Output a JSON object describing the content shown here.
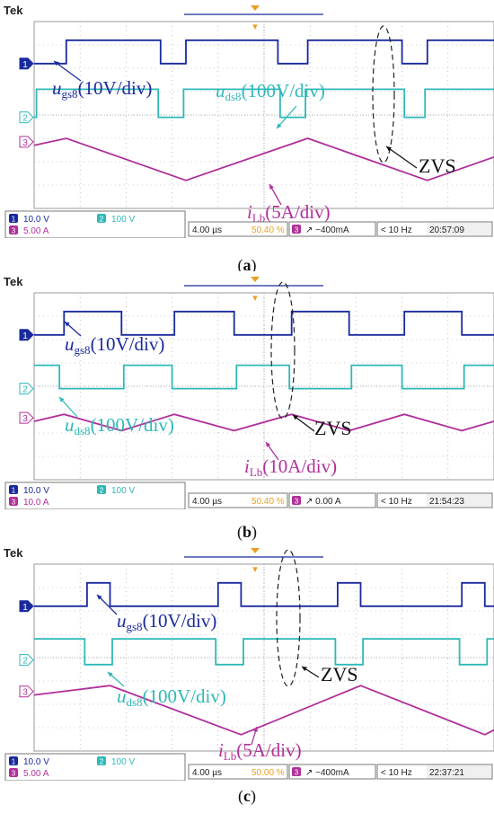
{
  "panels": [
    {
      "id": "a",
      "caption": "a",
      "tek": "Tek",
      "labels": {
        "ugs": "u",
        "ugs_sub": "gs8",
        "ugs_scale": "(10V/div)",
        "uds": "u",
        "uds_sub": "ds8",
        "uds_scale": "(100V/div)",
        "ilb": "i",
        "ilb_sub": "Lb",
        "ilb_scale": "(5A/div)",
        "zvs": "ZVS"
      },
      "status": {
        "ch1": "10.0 V",
        "ch2": "100 V",
        "ch3": "5.00 A",
        "timebase": "4.00 µs",
        "position": "50.40 %",
        "trig_ch": "3",
        "trig_level": "−400mA",
        "freq": "< 10 Hz",
        "clock": "20:57:09"
      },
      "channel_markers": [
        "1",
        "2",
        "3"
      ]
    },
    {
      "id": "b",
      "caption": "b",
      "tek": "Tek",
      "labels": {
        "ugs": "u",
        "ugs_sub": "gs8",
        "ugs_scale": "(10V/div)",
        "uds": "u",
        "uds_sub": "ds8",
        "uds_scale": "(100V/div)",
        "ilb": "i",
        "ilb_sub": "Lb",
        "ilb_scale": "(10A/div)",
        "zvs": "ZVS"
      },
      "status": {
        "ch1": "10.0 V",
        "ch2": "100 V",
        "ch3": "10.0 A",
        "timebase": "4.00 µs",
        "position": "50.40 %",
        "trig_ch": "3",
        "trig_level": "0.00 A",
        "freq": "< 10 Hz",
        "clock": "21:54:23"
      },
      "channel_markers": [
        "1",
        "2",
        "3"
      ]
    },
    {
      "id": "c",
      "caption": "c",
      "tek": "Tek",
      "labels": {
        "ugs": "u",
        "ugs_sub": "gs8",
        "ugs_scale": "(10V/div)",
        "uds": "u",
        "uds_sub": "ds8",
        "uds_scale": "(100V/div)",
        "ilb": "i",
        "ilb_sub": "Lb",
        "ilb_scale": "(5A/div)",
        "zvs": "ZVS"
      },
      "status": {
        "ch1": "10.0 V",
        "ch2": "100 V",
        "ch3": "5.00 A",
        "timebase": "4.00 µs",
        "position": "50.00 %",
        "trig_ch": "3",
        "trig_level": "−400mA",
        "freq": "< 10 Hz",
        "clock": "22:37:21"
      },
      "channel_markers": [
        "1",
        "2",
        "3"
      ]
    }
  ],
  "colors": {
    "ch1": "#1a2a9e",
    "ch2": "#2fb8b8",
    "ch3": "#b0309a",
    "grid": "#9a9a9a",
    "trigger": "#e8a020"
  },
  "chart_data": [
    {
      "type": "line",
      "panel": "a",
      "x_unit": "div",
      "xlim": [
        0,
        10
      ],
      "ylim": [
        -4,
        4
      ],
      "series": [
        {
          "name": "ugs8(10V/div)",
          "x": [
            0,
            0.7,
            0.7,
            2.75,
            2.75,
            3.3,
            3.3,
            5.3,
            5.3,
            5.95,
            5.95,
            8,
            8,
            8.55,
            8.55,
            10
          ],
          "y": [
            2.2,
            2.2,
            3.2,
            3.2,
            2.2,
            2.2,
            3.2,
            3.2,
            2.2,
            2.2,
            3.2,
            3.2,
            2.2,
            2.2,
            3.2,
            3.2
          ]
        },
        {
          "name": "uds8(100V/div)",
          "x": [
            0,
            0.05,
            0.05,
            2.7,
            2.7,
            3.25,
            3.25,
            5.35,
            5.35,
            5.9,
            5.9,
            8.05,
            8.05,
            8.5,
            8.5,
            10
          ],
          "y": [
            -0.1,
            -0.1,
            1.1,
            1.1,
            -0.1,
            -0.1,
            1.1,
            1.1,
            -0.1,
            -0.1,
            1.1,
            1.1,
            -0.1,
            -0.1,
            1.1,
            1.1
          ]
        },
        {
          "name": "iLb(5A/div)",
          "x": [
            0,
            0.7,
            3.3,
            5.95,
            8.55,
            10
          ],
          "y": [
            -1.3,
            -1.0,
            -2.8,
            -1.0,
            -2.8,
            -1.8
          ]
        }
      ]
    },
    {
      "type": "line",
      "panel": "b",
      "x_unit": "div",
      "xlim": [
        0,
        10
      ],
      "ylim": [
        -4,
        4
      ],
      "series": [
        {
          "name": "ugs8(10V/div)",
          "x": [
            0,
            0.65,
            0.65,
            1.9,
            1.9,
            3.05,
            3.05,
            4.35,
            4.35,
            5.6,
            5.6,
            6.85,
            6.85,
            8.05,
            8.05,
            9.3,
            9.3,
            10
          ],
          "y": [
            2.2,
            2.2,
            3.2,
            3.2,
            2.2,
            2.2,
            3.2,
            3.2,
            2.2,
            2.2,
            3.2,
            3.2,
            2.2,
            2.2,
            3.2,
            3.2,
            2.2,
            2.2
          ]
        },
        {
          "name": "uds8(100V/div)",
          "x": [
            0,
            0.55,
            0.55,
            1.95,
            1.95,
            3.0,
            3.0,
            4.4,
            4.4,
            5.55,
            5.55,
            6.9,
            6.9,
            8.0,
            8.0,
            9.35,
            9.35,
            10
          ],
          "y": [
            0.9,
            0.9,
            -0.1,
            -0.1,
            0.9,
            0.9,
            -0.1,
            -0.1,
            0.9,
            0.9,
            -0.1,
            -0.1,
            0.9,
            0.9,
            -0.1,
            -0.1,
            0.9,
            0.9
          ]
        },
        {
          "name": "iLb(10A/div)",
          "x": [
            0,
            0.65,
            1.9,
            3.05,
            4.35,
            5.6,
            6.85,
            8.05,
            9.3,
            10
          ],
          "y": [
            -1.5,
            -1.2,
            -1.9,
            -1.2,
            -1.9,
            -1.2,
            -1.9,
            -1.2,
            -1.9,
            -1.5
          ]
        }
      ]
    },
    {
      "type": "line",
      "panel": "c",
      "x_unit": "div",
      "xlim": [
        0,
        10
      ],
      "ylim": [
        -4,
        4
      ],
      "series": [
        {
          "name": "ugs8(10V/div)",
          "x": [
            0,
            1.15,
            1.15,
            1.65,
            1.65,
            4.0,
            4.0,
            4.5,
            4.5,
            6.6,
            6.6,
            7.1,
            7.1,
            9.3,
            9.3,
            9.8,
            9.8,
            10
          ],
          "y": [
            2.2,
            2.2,
            3.2,
            3.2,
            2.2,
            2.2,
            3.2,
            3.2,
            2.2,
            2.2,
            3.2,
            3.2,
            2.2,
            2.2,
            3.2,
            3.2,
            2.2,
            2.2
          ]
        },
        {
          "name": "uds8(100V/div)",
          "x": [
            0,
            1.1,
            1.1,
            1.7,
            1.7,
            3.95,
            3.95,
            4.55,
            4.55,
            6.55,
            6.55,
            7.15,
            7.15,
            9.25,
            9.25,
            9.85,
            9.85,
            10
          ],
          "y": [
            0.8,
            0.8,
            -0.3,
            -0.3,
            0.8,
            0.8,
            -0.3,
            -0.3,
            0.8,
            0.8,
            -0.3,
            -0.3,
            0.8,
            0.8,
            -0.3,
            -0.3,
            0.8,
            0.8
          ]
        },
        {
          "name": "iLb(5A/div)",
          "x": [
            0,
            1.65,
            4.5,
            7.1,
            9.8,
            10
          ],
          "y": [
            -1.6,
            -1.2,
            -3.3,
            -1.2,
            -3.3,
            -3.1
          ]
        }
      ]
    }
  ]
}
